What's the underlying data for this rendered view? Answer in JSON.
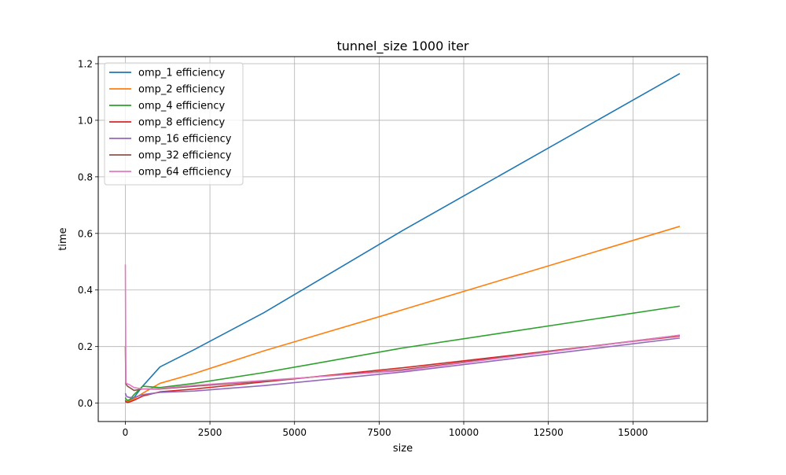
{
  "chart_data": {
    "type": "line",
    "title": "tunnel_size 1000 iter",
    "xlabel": "size",
    "ylabel": "time",
    "xlim": [
      -800,
      17200
    ],
    "ylim": [
      -0.065,
      1.225
    ],
    "xticks": [
      0,
      2500,
      5000,
      7500,
      10000,
      12500,
      15000
    ],
    "xtick_labels": [
      "0",
      "2500",
      "5000",
      "7500",
      "10000",
      "12500",
      "15000"
    ],
    "yticks": [
      0.0,
      0.2,
      0.4,
      0.6,
      0.8,
      1.0,
      1.2
    ],
    "ytick_labels": [
      "0.0",
      "0.2",
      "0.4",
      "0.6",
      "0.8",
      "1.0",
      "1.2"
    ],
    "grid": true,
    "legend_position": "upper-left",
    "series": [
      {
        "name": "omp_1 efficiency",
        "color": "#1f77b4",
        "x": [
          1,
          16,
          32,
          64,
          128,
          256,
          512,
          1024,
          2048,
          4096,
          8192,
          16384
        ],
        "y": [
          0.005,
          0.004,
          0.004,
          0.005,
          0.008,
          0.02,
          0.06,
          0.128,
          0.19,
          0.32,
          0.61,
          1.165
        ]
      },
      {
        "name": "omp_2 efficiency",
        "color": "#ff7f0e",
        "x": [
          1,
          16,
          32,
          64,
          128,
          256,
          512,
          1024,
          2048,
          4096,
          8192,
          16384
        ],
        "y": [
          0.006,
          0.005,
          0.005,
          0.006,
          0.008,
          0.015,
          0.035,
          0.07,
          0.105,
          0.185,
          0.33,
          0.625
        ]
      },
      {
        "name": "omp_4 efficiency",
        "color": "#2ca02c",
        "x": [
          1,
          16,
          32,
          64,
          128,
          256,
          512,
          1024,
          2048,
          4096,
          8192,
          16384
        ],
        "y": [
          0.02,
          0.015,
          0.012,
          0.01,
          0.012,
          0.03,
          0.06,
          0.055,
          0.07,
          0.108,
          0.195,
          0.343
        ]
      },
      {
        "name": "omp_8 efficiency",
        "color": "#d62728",
        "x": [
          1,
          16,
          32,
          64,
          128,
          256,
          512,
          1024,
          2048,
          4096,
          8192,
          16384
        ],
        "y": [
          0.01,
          0.006,
          0.004,
          0.003,
          0.004,
          0.01,
          0.025,
          0.04,
          0.05,
          0.075,
          0.125,
          0.237
        ]
      },
      {
        "name": "omp_16 efficiency",
        "color": "#9467bd",
        "x": [
          1,
          16,
          32,
          64,
          128,
          256,
          512,
          1024,
          2048,
          4096,
          8192,
          16384
        ],
        "y": [
          0.035,
          0.03,
          0.025,
          0.022,
          0.02,
          0.02,
          0.03,
          0.038,
          0.043,
          0.062,
          0.11,
          0.23
        ]
      },
      {
        "name": "omp_32 efficiency",
        "color": "#8c564b",
        "x": [
          1,
          16,
          32,
          64,
          128,
          256,
          512,
          1024,
          2048,
          4096,
          8192,
          16384
        ],
        "y": [
          0.2,
          0.07,
          0.065,
          0.06,
          0.055,
          0.045,
          0.05,
          0.05,
          0.06,
          0.078,
          0.118,
          0.24
        ]
      },
      {
        "name": "omp_64 efficiency",
        "color": "#e377c2",
        "x": [
          1,
          16,
          32,
          64,
          128,
          256,
          512,
          1024,
          2048,
          4096,
          8192,
          16384
        ],
        "y": [
          0.49,
          0.075,
          0.07,
          0.068,
          0.065,
          0.055,
          0.05,
          0.052,
          0.063,
          0.08,
          0.115,
          0.24
        ]
      }
    ]
  }
}
